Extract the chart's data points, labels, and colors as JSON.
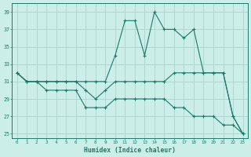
{
  "xlabel": "Humidex (Indice chaleur)",
  "bg_color": "#cceee8",
  "line_color": "#1a7a6a",
  "grid_color": "#b0d8d0",
  "x_values": [
    0,
    1,
    2,
    3,
    4,
    5,
    6,
    7,
    8,
    9,
    10,
    11,
    12,
    13,
    14,
    15,
    16,
    17,
    18,
    19,
    20,
    21,
    22,
    23
  ],
  "series1": [
    32,
    31,
    31,
    31,
    31,
    31,
    31,
    31,
    31,
    31,
    34,
    38,
    38,
    34,
    39,
    37,
    37,
    36,
    37,
    32,
    32,
    32,
    27,
    25
  ],
  "series2": [
    32,
    31,
    31,
    31,
    31,
    31,
    31,
    30,
    29,
    30,
    31,
    31,
    31,
    31,
    31,
    31,
    32,
    32,
    32,
    32,
    32,
    32,
    27,
    25
  ],
  "series3": [
    32,
    31,
    31,
    30,
    30,
    30,
    30,
    28,
    28,
    28,
    29,
    29,
    29,
    29,
    29,
    29,
    28,
    28,
    27,
    27,
    27,
    26,
    26,
    25
  ],
  "xlim": [
    -0.5,
    23.5
  ],
  "ylim": [
    24.5,
    40
  ],
  "yticks": [
    25,
    27,
    29,
    31,
    33,
    35,
    37,
    39
  ],
  "xticks": [
    0,
    1,
    2,
    3,
    4,
    5,
    6,
    7,
    8,
    9,
    10,
    11,
    12,
    13,
    14,
    15,
    16,
    17,
    18,
    19,
    20,
    21,
    22,
    23
  ]
}
